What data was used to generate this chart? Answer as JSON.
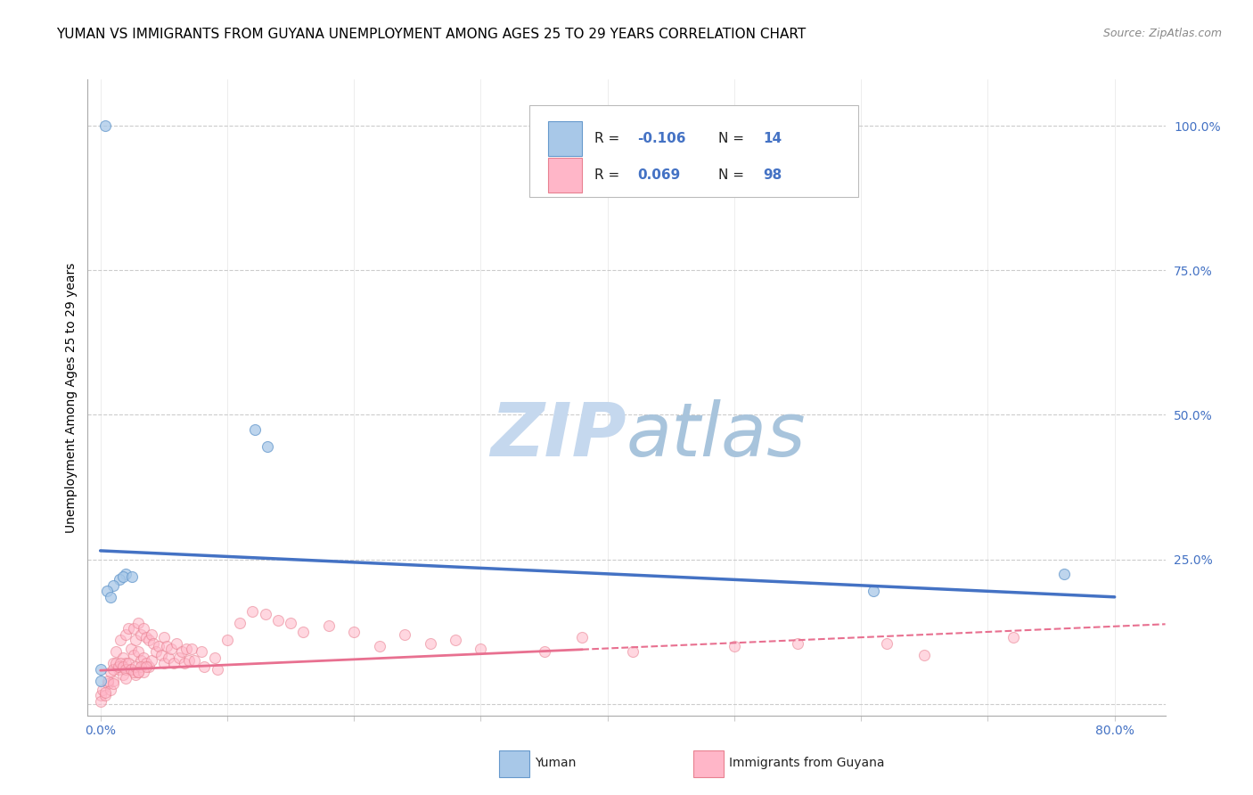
{
  "title": "YUMAN VS IMMIGRANTS FROM GUYANA UNEMPLOYMENT AMONG AGES 25 TO 29 YEARS CORRELATION CHART",
  "source": "Source: ZipAtlas.com",
  "ylabel": "Unemployment Among Ages 25 to 29 years",
  "watermark": "ZIPAtlas",
  "xlim": [
    -0.01,
    0.84
  ],
  "ylim": [
    -0.02,
    1.08
  ],
  "yuman_color": "#A8C8E8",
  "guyana_color": "#FFB6C8",
  "yuman_edge_color": "#6699CC",
  "guyana_edge_color": "#E88090",
  "trend_yuman_color": "#4472C4",
  "trend_guyana_color": "#E87090",
  "legend_r_yuman": "-0.106",
  "legend_n_yuman": "14",
  "legend_r_guyana": "0.069",
  "legend_n_guyana": "98",
  "yuman_x": [
    0.004,
    0.122,
    0.132,
    0.02,
    0.015,
    0.01,
    0.005,
    0.008,
    0.61,
    0.76,
    0.0,
    0.0,
    0.018,
    0.025
  ],
  "yuman_y": [
    1.0,
    0.475,
    0.445,
    0.225,
    0.215,
    0.205,
    0.195,
    0.185,
    0.195,
    0.225,
    0.04,
    0.06,
    0.22,
    0.22
  ],
  "guyana_x": [
    0.0,
    0.0,
    0.002,
    0.004,
    0.006,
    0.008,
    0.01,
    0.01,
    0.012,
    0.014,
    0.016,
    0.018,
    0.018,
    0.02,
    0.02,
    0.022,
    0.024,
    0.024,
    0.026,
    0.026,
    0.028,
    0.028,
    0.03,
    0.03,
    0.032,
    0.032,
    0.034,
    0.034,
    0.036,
    0.036,
    0.038,
    0.038,
    0.04,
    0.04,
    0.042,
    0.044,
    0.046,
    0.048,
    0.05,
    0.05,
    0.052,
    0.054,
    0.056,
    0.058,
    0.06,
    0.062,
    0.064,
    0.066,
    0.068,
    0.07,
    0.072,
    0.074,
    0.08,
    0.082,
    0.09,
    0.092,
    0.1,
    0.11,
    0.12,
    0.13,
    0.14,
    0.15,
    0.16,
    0.18,
    0.2,
    0.22,
    0.24,
    0.26,
    0.28,
    0.3,
    0.35,
    0.38,
    0.42,
    0.5,
    0.55,
    0.62,
    0.65,
    0.72,
    0.004,
    0.006,
    0.008,
    0.01,
    0.012,
    0.014,
    0.016,
    0.018,
    0.02,
    0.022,
    0.024,
    0.026,
    0.028,
    0.03,
    0.032,
    0.034,
    0.036,
    0.01,
    0.02,
    0.03
  ],
  "guyana_y": [
    0.015,
    0.005,
    0.025,
    0.015,
    0.035,
    0.025,
    0.07,
    0.04,
    0.09,
    0.06,
    0.11,
    0.08,
    0.05,
    0.12,
    0.07,
    0.13,
    0.095,
    0.06,
    0.13,
    0.085,
    0.05,
    0.11,
    0.14,
    0.09,
    0.12,
    0.075,
    0.13,
    0.08,
    0.115,
    0.07,
    0.11,
    0.065,
    0.12,
    0.075,
    0.105,
    0.09,
    0.1,
    0.085,
    0.115,
    0.07,
    0.1,
    0.08,
    0.095,
    0.07,
    0.105,
    0.08,
    0.09,
    0.07,
    0.095,
    0.075,
    0.095,
    0.075,
    0.09,
    0.065,
    0.08,
    0.06,
    0.11,
    0.14,
    0.16,
    0.155,
    0.145,
    0.14,
    0.125,
    0.135,
    0.125,
    0.1,
    0.12,
    0.105,
    0.11,
    0.095,
    0.09,
    0.115,
    0.09,
    0.1,
    0.105,
    0.105,
    0.085,
    0.115,
    0.02,
    0.04,
    0.055,
    0.06,
    0.07,
    0.065,
    0.07,
    0.065,
    0.06,
    0.07,
    0.06,
    0.055,
    0.065,
    0.055,
    0.065,
    0.055,
    0.065,
    0.035,
    0.045,
    0.055
  ],
  "marker_size": 75,
  "background_color": "#FFFFFF",
  "grid_color": "#CCCCCC",
  "title_fontsize": 11,
  "axis_label_fontsize": 10,
  "tick_fontsize": 10,
  "source_fontsize": 9,
  "watermark_color": "#C8D8EC",
  "watermark_fontsize": 60,
  "trend_yuman_x0": 0.0,
  "trend_yuman_x1": 0.8,
  "trend_yuman_y0": 0.265,
  "trend_yuman_y1": 0.185,
  "trend_guyana_x0": 0.0,
  "trend_guyana_x1": 0.84,
  "trend_guyana_y0": 0.058,
  "trend_guyana_y1": 0.138,
  "trend_guyana_solid_end": 0.38
}
